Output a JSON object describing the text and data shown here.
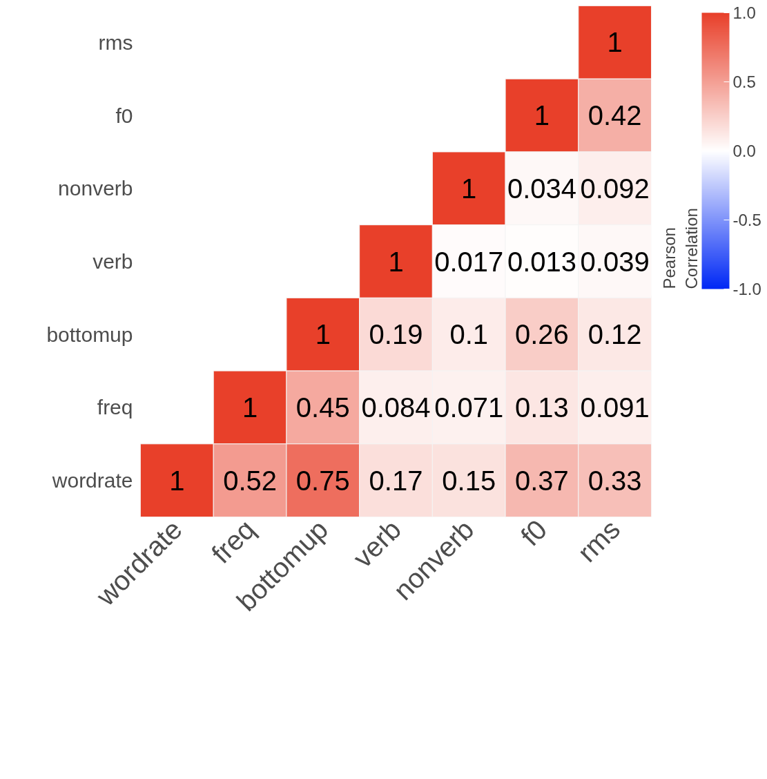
{
  "chart_data": {
    "type": "heatmap",
    "legend_title": "Pearson\nCorrelation",
    "categories": [
      "wordrate",
      "freq",
      "bottomup",
      "verb",
      "nonverb",
      "f0",
      "rms"
    ],
    "y_categories": [
      "rms",
      "f0",
      "nonverb",
      "verb",
      "bottomup",
      "freq",
      "wordrate"
    ],
    "cells": [
      [
        null,
        null,
        null,
        null,
        null,
        null,
        1
      ],
      [
        null,
        null,
        null,
        null,
        null,
        1,
        0.42
      ],
      [
        null,
        null,
        null,
        null,
        1,
        0.034,
        0.092
      ],
      [
        null,
        null,
        null,
        1,
        0.017,
        0.013,
        0.039
      ],
      [
        null,
        null,
        1,
        0.19,
        0.1,
        0.26,
        0.12
      ],
      [
        null,
        1,
        0.45,
        0.084,
        0.071,
        0.13,
        0.091
      ],
      [
        1,
        0.52,
        0.75,
        0.17,
        0.15,
        0.37,
        0.33
      ]
    ],
    "data_labels": true,
    "clim": [
      -1,
      1
    ],
    "cticks": [
      {
        "value": -1,
        "label": "-1.0"
      },
      {
        "value": -0.5,
        "label": "-0.5"
      },
      {
        "value": 0,
        "label": "0.0"
      },
      {
        "value": 0.5,
        "label": "0.5"
      },
      {
        "value": 1,
        "label": "1.0"
      }
    ]
  }
}
